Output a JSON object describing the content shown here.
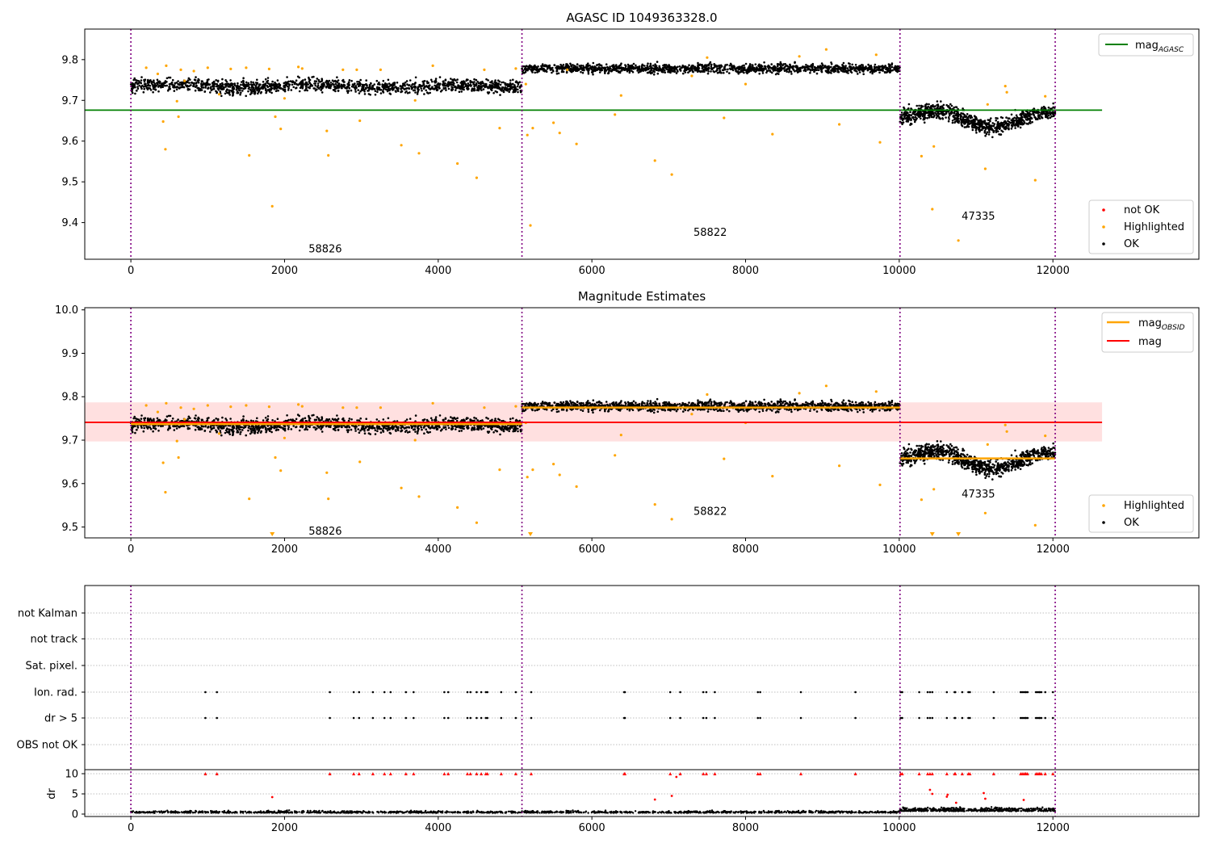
{
  "chart_data": [
    {
      "type": "scatter",
      "title": "AGASC ID 1049363328.0",
      "xlim": [
        -600,
        13900
      ],
      "ylim": [
        9.31,
        9.875
      ],
      "yticks": [
        9.4,
        9.5,
        9.6,
        9.7,
        9.8
      ],
      "xticks": [
        0,
        2000,
        4000,
        6000,
        8000,
        10000,
        12000
      ],
      "legend_top": [
        {
          "label": "mag",
          "sub": "AGASC",
          "color": "#008000"
        }
      ],
      "legend_bottom": [
        {
          "label": "not OK",
          "color": "#ff0000"
        },
        {
          "label": "Highlighted",
          "color": "#ffa500"
        },
        {
          "label": "OK",
          "color": "#000000"
        }
      ],
      "agasc_mag": 9.676,
      "hline_x": [
        -600,
        12640
      ],
      "segments": [
        {
          "obsid": "58826",
          "x": [
            0,
            5090
          ],
          "mean": 9.735,
          "spread": 0.016,
          "annot_x": 2530,
          "annot_y": 9.335
        },
        {
          "obsid": "58822",
          "x": [
            5090,
            10010
          ],
          "mean": 9.778,
          "spread": 0.011,
          "annot_x": 7540,
          "annot_y": 9.375
        },
        {
          "obsid": "47335",
          "x": [
            10010,
            12030
          ],
          "mean": 9.657,
          "spread": 0.019,
          "annot_x": 11030,
          "annot_y": 9.415
        }
      ],
      "obs_boundaries": [
        0,
        5090,
        10010,
        12030
      ],
      "highlighted": [
        [
          200,
          9.78
        ],
        [
          350,
          9.765
        ],
        [
          420,
          9.648
        ],
        [
          450,
          9.58
        ],
        [
          460,
          9.785
        ],
        [
          600,
          9.698
        ],
        [
          620,
          9.66
        ],
        [
          650,
          9.775
        ],
        [
          700,
          9.748
        ],
        [
          820,
          9.772
        ],
        [
          1000,
          9.78
        ],
        [
          1150,
          9.715
        ],
        [
          1300,
          9.777
        ],
        [
          1500,
          9.78
        ],
        [
          1540,
          9.565
        ],
        [
          1800,
          9.777
        ],
        [
          1840,
          9.44
        ],
        [
          1880,
          9.66
        ],
        [
          1950,
          9.63
        ],
        [
          2000,
          9.705
        ],
        [
          2180,
          9.782
        ],
        [
          2230,
          9.778
        ],
        [
          2550,
          9.625
        ],
        [
          2570,
          9.565
        ],
        [
          2760,
          9.775
        ],
        [
          2940,
          9.775
        ],
        [
          2980,
          9.65
        ],
        [
          3250,
          9.775
        ],
        [
          3520,
          9.59
        ],
        [
          3700,
          9.7
        ],
        [
          3750,
          9.57
        ],
        [
          3930,
          9.785
        ],
        [
          4250,
          9.545
        ],
        [
          4500,
          9.51
        ],
        [
          4600,
          9.775
        ],
        [
          4800,
          9.632
        ],
        [
          5010,
          9.778
        ],
        [
          5140,
          9.74
        ],
        [
          5160,
          9.615
        ],
        [
          5200,
          9.393
        ],
        [
          5230,
          9.632
        ],
        [
          5500,
          9.645
        ],
        [
          5580,
          9.62
        ],
        [
          5680,
          9.775
        ],
        [
          5800,
          9.593
        ],
        [
          6300,
          9.665
        ],
        [
          6380,
          9.712
        ],
        [
          6820,
          9.552
        ],
        [
          7040,
          9.518
        ],
        [
          7300,
          9.76
        ],
        [
          7500,
          9.805
        ],
        [
          7720,
          9.657
        ],
        [
          8000,
          9.74
        ],
        [
          8350,
          9.617
        ],
        [
          8700,
          9.808
        ],
        [
          9050,
          9.825
        ],
        [
          9220,
          9.641
        ],
        [
          9700,
          9.812
        ],
        [
          9750,
          9.597
        ],
        [
          10290,
          9.563
        ],
        [
          10430,
          9.433
        ],
        [
          10450,
          9.587
        ],
        [
          10770,
          9.356
        ],
        [
          11120,
          9.532
        ],
        [
          11150,
          9.69
        ],
        [
          11380,
          9.735
        ],
        [
          11400,
          9.72
        ],
        [
          11770,
          9.504
        ],
        [
          11900,
          9.71
        ]
      ]
    },
    {
      "type": "scatter",
      "title": "Magnitude Estimates",
      "xlim": [
        -600,
        13900
      ],
      "ylim": [
        9.475,
        10.005
      ],
      "yticks": [
        9.5,
        9.6,
        9.7,
        9.8,
        9.9,
        10.0
      ],
      "xticks": [
        0,
        2000,
        4000,
        6000,
        8000,
        10000,
        12000
      ],
      "legend_top": [
        {
          "label": "mag",
          "sub": "OBSID",
          "color": "#ffa500"
        },
        {
          "label": "mag",
          "sub": "",
          "color": "#ff0000"
        }
      ],
      "legend_bottom": [
        {
          "label": "Highlighted",
          "color": "#ffa500"
        },
        {
          "label": "OK",
          "color": "#000000"
        }
      ],
      "mag": 9.741,
      "mag_band": [
        9.697,
        9.787
      ],
      "segment_means": [
        9.737,
        9.775,
        9.658
      ],
      "annot_y": [
        9.49,
        9.535,
        9.575
      ]
    },
    {
      "type": "scatter",
      "title": "",
      "xlim": [
        -600,
        13900
      ],
      "xticks": [
        0,
        2000,
        4000,
        6000,
        8000,
        10000,
        12000
      ],
      "flag_rows": [
        "not Kalman",
        "not track",
        "Sat. pixel.",
        "Ion. rad.",
        "dr > 5",
        "OBS not OK"
      ],
      "flag_x": [
        970,
        1120,
        2590,
        2900,
        2970,
        3150,
        3300,
        3380,
        3580,
        3680,
        4080,
        4130,
        4380,
        4420,
        4500,
        4560,
        4620,
        4640,
        4820,
        5010,
        5210,
        6420,
        6430,
        7020,
        7150,
        7450,
        7490,
        7600,
        8160,
        8190,
        8720,
        9430,
        10020,
        10040,
        10260,
        10370,
        10400,
        10430,
        10620,
        10720,
        10730,
        10820,
        10900,
        10920,
        11230,
        11580,
        11600,
        11620,
        11640,
        11650,
        11670,
        11780,
        11800,
        11820,
        11830,
        11850,
        11900,
        12000
      ],
      "dr_ylim": [
        -0.6,
        11.0
      ],
      "dr_yticks": [
        0,
        5,
        10
      ],
      "dr_ylabel": "dr"
    }
  ]
}
